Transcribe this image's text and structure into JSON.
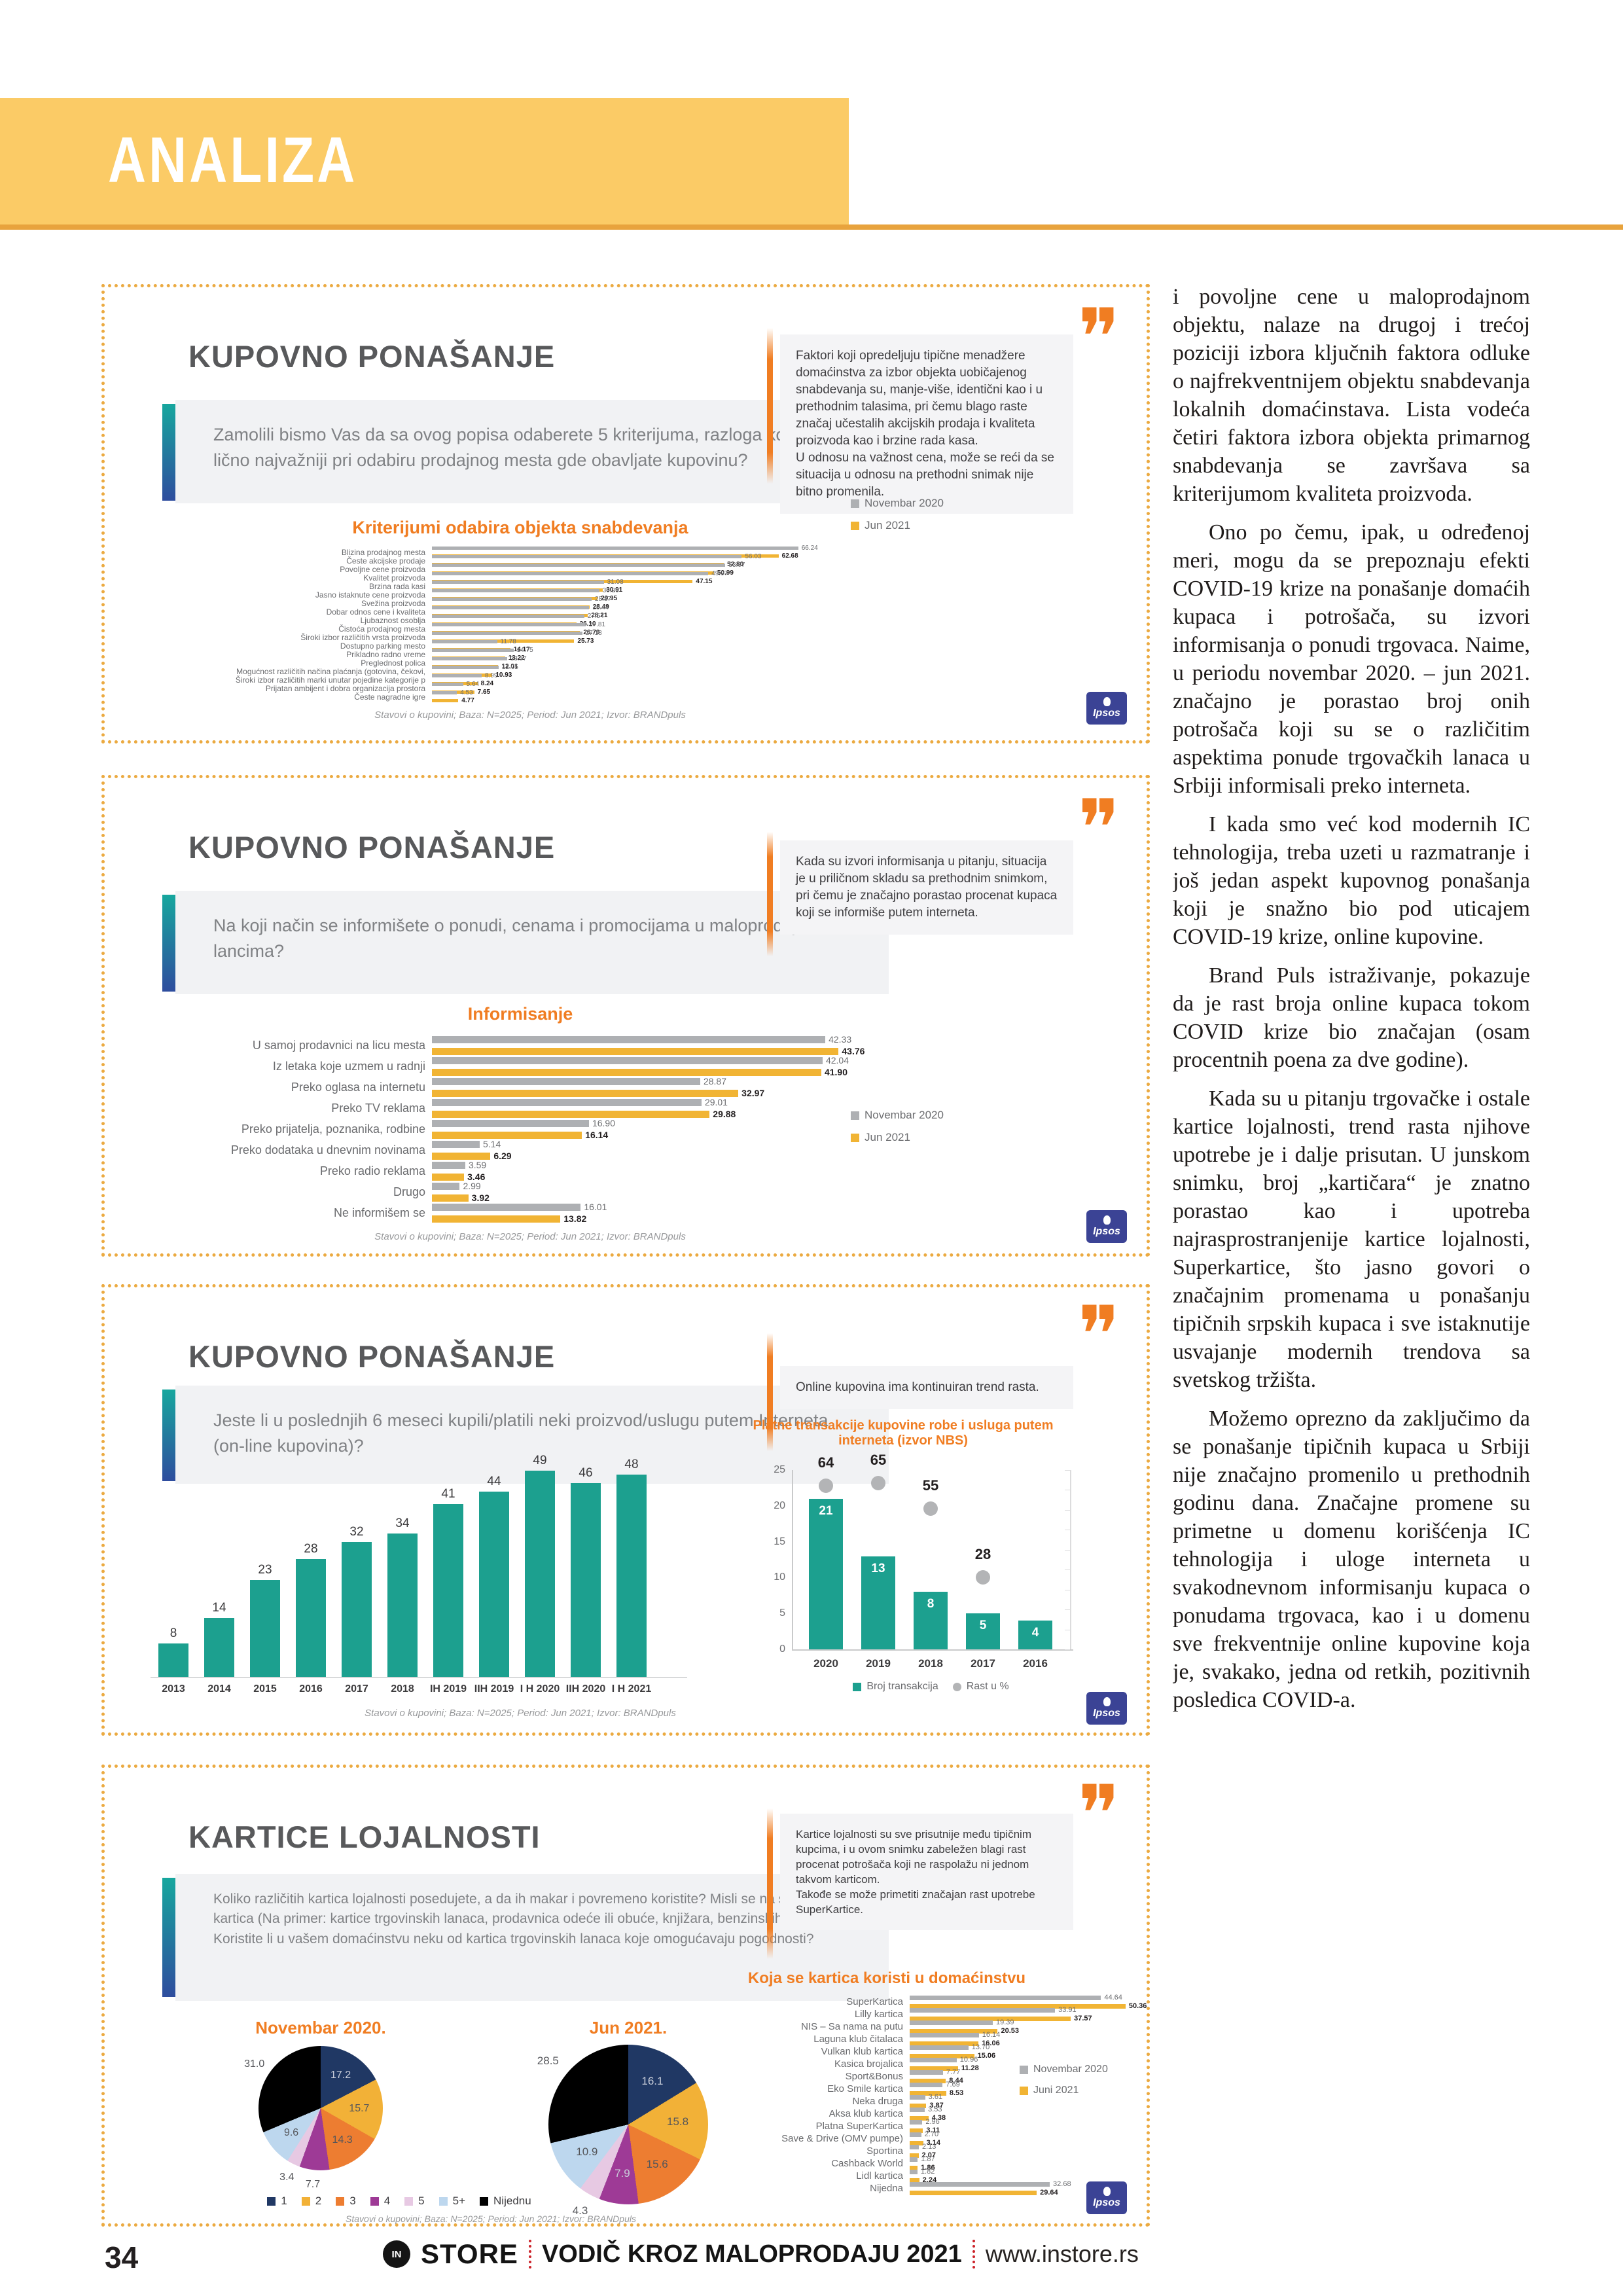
{
  "header": {
    "label": "ANALIZA"
  },
  "footer": {
    "page_number": "34",
    "brand_badge": "IN",
    "brand": "STORE",
    "title": "VODIČ KROZ MALOPRODAJU 2021",
    "site": "www.instore.rs"
  },
  "brand_logo": "Ipsos",
  "colors": {
    "accent_orange": "#F07D22",
    "bar_gray": "#AEB0B3",
    "bar_yellow": "#F1B434",
    "teal": "#1CA08F",
    "dot_gray": "#B3B4B6",
    "title_gray": "#58595B",
    "panel_border": "#EBAA41",
    "banner_yellow": "#FBCB66",
    "banner_line": "#E8A33D",
    "ipsos_blue": "#3B4395",
    "footer_red": "#CC2229",
    "pie": [
      "#203864",
      "#F2B137",
      "#ED7D31",
      "#9E3A96",
      "#E7C9E3",
      "#BDD7EE",
      "#000000"
    ]
  },
  "article": {
    "paragraphs": [
      "i povoljne cene u maloprodajnom objektu, nalaze na drugoj i trećoj poziciji izbora ključnih faktora odluke o najfrekventnijem objektu snabdevanja lokalnih domaćinstava. Lista vodeća četiri faktora izbora objekta primarnog snabdevanja se završava sa kriterijumom kvaliteta proizvoda.",
      "Ono po čemu, ipak, u određenoj meri, mogu da se prepoznaju efekti COVID-19 krize na ponašanje domaćih kupaca i potrošača, su izvori informisanja o ponudi trgovaca. Naime, u periodu novembar 2020. – jun 2021. značajno je porastao broj onih potrošača koji su se o različitim aspektima ponude trgovačkih lanaca u Srbiji informisali preko interneta.",
      "I kada smo već kod modernih IC tehnologija, treba uzeti u razmatranje i još jedan aspekt kupovnog ponašanja koji je snažno bio pod uticajem COVID-19 krize, online kupovine.",
      "Brand Puls istraživanje, pokazuje da je rast broja online kupaca tokom COVID krize bio značajan (osam procentnih poena za dve godine).",
      "Kada su u pitanju trgovačke i ostale kartice lojalnosti, trend rasta njihove upotrebe je i dalje prisutan. U junskom snimku, broj „kartičara“ je znatno porastao kao i upotreba najrasprostranjenije kartice lojalnosti, Superkartice, što jasno govori o značajnim promenama u ponašanju tipičnih srpskih kupaca i sve istaknutije usvajanje modernih trendova sa svetskog tržišta.",
      "Možemo oprezno da zaključimo da se ponašanje tipičnih kupaca u Srbiji nije značajno promenilo u prethodnih godinu dana. Značajne promene su primetne u domenu korišćenja IC tehnologija i uloge interneta u svakodnevnom informisanju kupaca o ponudama trgovaca, kao i u domenu sve frekventnije online kupovine koja je, svakako, jedna od retkih, pozitivnih posledica COVID-a."
    ]
  },
  "panels": [
    {
      "title": "KUPOVNO PONAŠANJE",
      "question": "Zamolili bismo Vas da sa ovog popisa odaberete 5 kriterijuma, razloga koji su Vam lično najvažniji pri odabiru prodajnog mesta gde obavljate kupovinu?",
      "note": "Faktori koji opredeljuju tipične menadžere domaćinstva za izbor objekta uobičajenog snabdevanja su, manje-više, identični kao i u prethodnim talasima, pri čemu blago raste značaj učestalih akcijskih prodaja i kvaliteta proizvoda kao i brzine rada kasa.\nU odnosu na važnost cena, može se reći da se situacija u odnosu na prethodni snimak nije bitno promenila.",
      "source": "Stavovi o kupovini; Baza: N=2025; Period: Jun 2021; Izvor: BRANDpuls",
      "chart": {
        "type": "grouped_hbar",
        "title": "Kriterijumi odabira objekta snabdevanja",
        "legend": [
          "Novembar 2020",
          "Jun 2021"
        ],
        "categories": [
          "Blizina prodajnog mesta",
          "Česte akcijske prodaje",
          "Povoljne cene proizvoda",
          "Kvalitet proizvoda",
          "Brzina rada kasi",
          "Jasno istaknute cene proizvoda",
          "Svežina proizvoda",
          "Dobar odnos cene i kvaliteta",
          "Ljubaznost osoblja",
          "Čistoća prodajnog mesta",
          "Široki izbor različitih vrsta proizvoda",
          "Dostupno parking mesto",
          "Prikladno radno vreme",
          "Preglednost polica",
          "Mogućnost različitih načina plaćanja (gotovina, čekovi,",
          "Široki izbor različitih marki unutar pojedine kategorije p",
          "Prijatan ambijent i dobra organizacija prostora",
          "Česte nagradne igre"
        ],
        "series": [
          {
            "name": "Novembar 2020",
            "values": [
              "66.24",
              "56.03",
              "53.07",
              "49.97",
              "31.08",
              "30.26",
              "28.87",
              "28.44",
              "27.54",
              "27.81",
              "27.18",
              "11.78",
              "14.75",
              "13.57",
              "12.05",
              "8.99",
              "5.64",
              "4.53"
            ]
          },
          {
            "name": "Jun 2021",
            "values": [
              "62.68",
              "52.80",
              "50.99",
              "47.15",
              "30.91",
              "29.95",
              "28.49",
              "28.21",
              "26.10",
              "26.79",
              "25.73",
              "14.17",
              "13.22",
              "12.01",
              "10.93",
              "8.24",
              "7.65",
              "4.77"
            ]
          }
        ]
      }
    },
    {
      "title": "KUPOVNO PONAŠANJE",
      "question": "Na koji način se informišete o ponudi, cenama i promocijama u maloprodajnim lancima?",
      "note": "Kada su izvori informisanja u pitanju, situacija je u priličnom skladu sa prethodnim snimkom, pri čemu je značajno porastao procenat kupaca koji se informiše putem interneta.",
      "source": "Stavovi o kupovini; Baza: N=2025; Period: Jun 2021; Izvor: BRANDpuls",
      "chart": {
        "type": "grouped_hbar",
        "title": "Informisanje",
        "legend": [
          "Novembar 2020",
          "Jun 2021"
        ],
        "categories": [
          "U samoj prodavnici na licu mesta",
          "Iz letaka koje uzmem u radnji",
          "Preko oglasa na internetu",
          "Preko TV reklama",
          "Preko prijatelja, poznanika, rodbine",
          "Preko dodataka u dnevnim novinama",
          "Preko radio reklama",
          "Drugo",
          "Ne informišem se"
        ],
        "series": [
          {
            "name": "Novembar 2020",
            "values": [
              "42.33",
              "42.04",
              "28.87",
              "29.01",
              "16.90",
              "5.14",
              "3.59",
              "2.99",
              "16.01"
            ]
          },
          {
            "name": "Jun 2021",
            "values": [
              "43.76",
              "41.90",
              "32.97",
              "29.88",
              "16.14",
              "6.29",
              "3.46",
              "3.92",
              "13.82"
            ]
          }
        ]
      }
    },
    {
      "title": "KUPOVNO PONAŠANJE",
      "question": "Jeste li u poslednjih 6 meseci kupili/platili neki proizvod/uslugu putem Interneta (on-line kupovina)?",
      "note": "Online kupovina ima kontinuiran trend rasta.",
      "source": "Stavovi o kupovini; Baza: N=2025; Period: Jun 2021; Izvor: BRANDpuls",
      "chart_left": {
        "type": "vbar",
        "categories": [
          "2013",
          "2014",
          "2015",
          "2016",
          "2017",
          "2018",
          "IH 2019",
          "IIH 2019",
          "I H 2020",
          "IIH 2020",
          "I H 2021"
        ],
        "values": [
          8,
          14,
          23,
          28,
          32,
          34,
          41,
          44,
          49,
          46,
          48
        ]
      },
      "chart_right": {
        "type": "vbar_dots",
        "title": "Platne transakcije kupovine robe i usluga putem interneta (izvor NBS)",
        "categories": [
          "2020",
          "2019",
          "2018",
          "2017",
          "2016"
        ],
        "bars": [
          21,
          13,
          8,
          5,
          4
        ],
        "dots": [
          64,
          65,
          55,
          28,
          null
        ],
        "yticks": [
          25,
          20,
          15,
          10,
          5,
          0
        ],
        "legend": [
          "Broj transakcija",
          "Rast u %"
        ]
      }
    },
    {
      "title": "KARTICE LOJALNOSTI",
      "question": "Koliko različitih kartica lojalnosti posedujete, a da ih makar i povremeno koristite? Misli se na sve vrste kartica (Na primer: kartice trgovinskih lanaca, prodavnica odeće ili obuće, knjižara, benzinskih pumpi...itd.)\nKoristite li u vašem domaćinstvu neku od kartica trgovinskih lanaca koje omogućavaju pogodnosti?",
      "note": "Kartice lojalnosti su sve prisutnije među tipičnim kupcima, i u ovom snimku zabeležen blagi rast procenat potrošača koji ne raspolažu ni jednom takvom karticom.\nTakođe se može primetiti značajan rast upotrebe SuperKartice.",
      "source": "Stavovi o kupovini; Baza: N=2025; Period: Jun 2021; Izvor: BRANDpuls",
      "pies": [
        {
          "title": "Novembar 2020.",
          "labels": [
            "1",
            "2",
            "3",
            "4",
            "5",
            "5+",
            "Nijednu"
          ],
          "values": [
            "17.2",
            "15.7",
            "14.3",
            "7.7",
            "3.4",
            "9.6",
            "31.0"
          ]
        },
        {
          "title": "Jun 2021.",
          "labels": [
            "1",
            "2",
            "3",
            "4",
            "5",
            "5+",
            "Nijednu"
          ],
          "values": [
            "16.1",
            "15.8",
            "15.6",
            "7.9",
            "4.3",
            "10.9",
            "28.5"
          ]
        }
      ],
      "pie_legend": [
        "1",
        "2",
        "3",
        "4",
        "5",
        "5+",
        "Nijednu"
      ],
      "chart": {
        "type": "grouped_hbar",
        "title": "Koja se kartica koristi u domaćinstvu",
        "legend": [
          "Novembar 2020",
          "Juni 2021"
        ],
        "categories": [
          "SuperKartica",
          "Lilly kartica",
          "NIS – Sa nama na putu",
          "Laguna klub čitalaca",
          "Vulkan klub kartica",
          "Kasica brojalica",
          "Sport&Bonus",
          "Eko Smile kartica",
          "Neka druga",
          "Aksa klub kartica",
          "Platna SuperKartica",
          "Save & Drive (OMV pumpe)",
          "Sportina",
          "Cashback World",
          "Lidl kartica",
          "Nijedna"
        ],
        "series": [
          {
            "name": "Novembar 2020",
            "values": [
              "44.64",
              "33.91",
              "19.39",
              "16.14",
              "13.70",
              "10.96",
              "7.77",
              "7.69",
              "3.61",
              "3.53",
              "2.96",
              "2.70",
              "2.13",
              "1.87",
              "1.82",
              "32.68"
            ]
          },
          {
            "name": "Juni 2021",
            "values": [
              "50.36",
              "37.57",
              "20.53",
              "16.06",
              "15.06",
              "11.28",
              "8.44",
              "8.53",
              "3.87",
              "4.38",
              "3.11",
              "3.14",
              "2.07",
              "1.86",
              "2.24",
              "29.64"
            ]
          }
        ]
      }
    }
  ]
}
